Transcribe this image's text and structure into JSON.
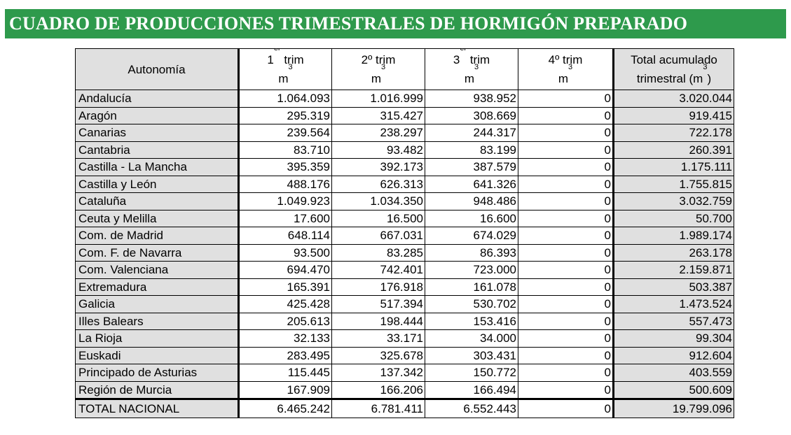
{
  "title": "CUADRO DE PRODUCCIONES TRIMESTRALES DE HORMIGÓN PREPARADO",
  "headers": {
    "autonomia": "Autonomía",
    "q1": {
      "num": "1",
      "sup": "er",
      "word": " trim",
      "unit": "m",
      "unit_sup": "3"
    },
    "q2": {
      "label": "2º trim",
      "unit": "m",
      "unit_sup": "3"
    },
    "q3": {
      "num": "3",
      "sup": "er",
      "word": " trim",
      "unit": "m",
      "unit_sup": "3"
    },
    "q4": {
      "label": "4º trim",
      "unit": "m",
      "unit_sup": "3"
    },
    "total": {
      "line1": "Total acumulado",
      "line2_pre": "trimestral (m",
      "line2_sup": "3",
      "line2_post": ")"
    }
  },
  "rows": [
    {
      "region": "Andalucía",
      "q1": "1.064.093",
      "q2": "1.016.999",
      "q3": "938.952",
      "q4": "0",
      "total": "3.020.044"
    },
    {
      "region": "Aragón",
      "q1": "295.319",
      "q2": "315.427",
      "q3": "308.669",
      "q4": "0",
      "total": "919.415"
    },
    {
      "region": "Canarias",
      "q1": "239.564",
      "q2": "238.297",
      "q3": "244.317",
      "q4": "0",
      "total": "722.178"
    },
    {
      "region": "Cantabria",
      "q1": "83.710",
      "q2": "93.482",
      "q3": "83.199",
      "q4": "0",
      "total": "260.391"
    },
    {
      "region": "Castilla - La Mancha",
      "q1": "395.359",
      "q2": "392.173",
      "q3": "387.579",
      "q4": "0",
      "total": "1.175.111"
    },
    {
      "region": "Castilla y León",
      "q1": "488.176",
      "q2": "626.313",
      "q3": "641.326",
      "q4": "0",
      "total": "1.755.815"
    },
    {
      "region": "Cataluña",
      "q1": "1.049.923",
      "q2": "1.034.350",
      "q3": "948.486",
      "q4": "0",
      "total": "3.032.759"
    },
    {
      "region": "Ceuta y Melilla",
      "q1": "17.600",
      "q2": "16.500",
      "q3": "16.600",
      "q4": "0",
      "total": "50.700"
    },
    {
      "region": "Com. de Madrid",
      "q1": "648.114",
      "q2": "667.031",
      "q3": "674.029",
      "q4": "0",
      "total": "1.989.174"
    },
    {
      "region": "Com. F. de Navarra",
      "q1": "93.500",
      "q2": "83.285",
      "q3": "86.393",
      "q4": "0",
      "total": "263.178"
    },
    {
      "region": "Com. Valenciana",
      "q1": "694.470",
      "q2": "742.401",
      "q3": "723.000",
      "q4": "0",
      "total": "2.159.871"
    },
    {
      "region": "Extremadura",
      "q1": "165.391",
      "q2": "176.918",
      "q3": "161.078",
      "q4": "0",
      "total": "503.387"
    },
    {
      "region": "Galicia",
      "q1": "425.428",
      "q2": "517.394",
      "q3": "530.702",
      "q4": "0",
      "total": "1.473.524"
    },
    {
      "region": "Illes Balears",
      "q1": "205.613",
      "q2": "198.444",
      "q3": "153.416",
      "q4": "0",
      "total": "557.473"
    },
    {
      "region": "La Rioja",
      "q1": "32.133",
      "q2": "33.171",
      "q3": "34.000",
      "q4": "0",
      "total": "99.304"
    },
    {
      "region": "Euskadi",
      "q1": "283.495",
      "q2": "325.678",
      "q3": "303.431",
      "q4": "0",
      "total": "912.604"
    },
    {
      "region": "Principado de Asturias",
      "q1": "115.445",
      "q2": "137.342",
      "q3": "150.772",
      "q4": "0",
      "total": "403.559"
    },
    {
      "region": "Región de Murcia",
      "q1": "167.909",
      "q2": "166.206",
      "q3": "166.494",
      "q4": "0",
      "total": "500.609"
    }
  ],
  "total_row": {
    "region": "TOTAL NACIONAL",
    "q1": "6.465.242",
    "q2": "6.781.411",
    "q3": "6.552.443",
    "q4": "0",
    "total": "19.799.096"
  },
  "colors": {
    "title_bg": "#2e9a4c",
    "title_text": "#ffffff",
    "shaded_cell": "#e0e0e0",
    "border": "#000000"
  }
}
